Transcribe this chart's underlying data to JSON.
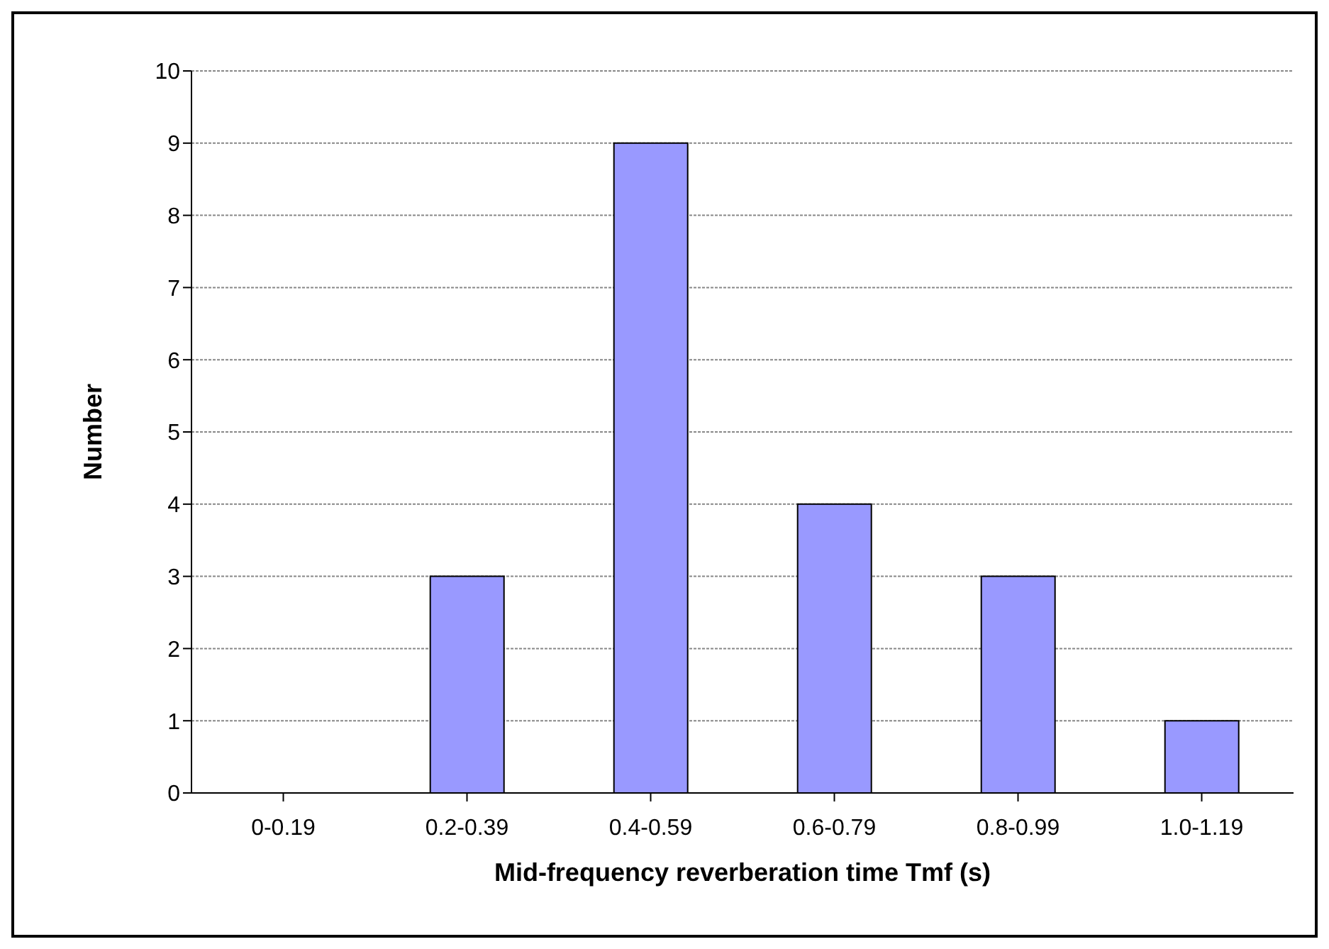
{
  "chart_data": {
    "type": "bar",
    "xlabel": "Mid-frequency reverberation time Tmf (s)",
    "ylabel": "Number",
    "categories": [
      "0-0.19",
      "0.2-0.39",
      "0.4-0.59",
      "0.6-0.79",
      "0.8-0.99",
      "1.0-1.19"
    ],
    "values": [
      0,
      3,
      9,
      4,
      3,
      1
    ],
    "color": "#9999ff",
    "ylim": [
      0,
      10
    ],
    "yticks": [
      0,
      1,
      2,
      3,
      4,
      5,
      6,
      7,
      8,
      9,
      10
    ],
    "grid": "y"
  }
}
